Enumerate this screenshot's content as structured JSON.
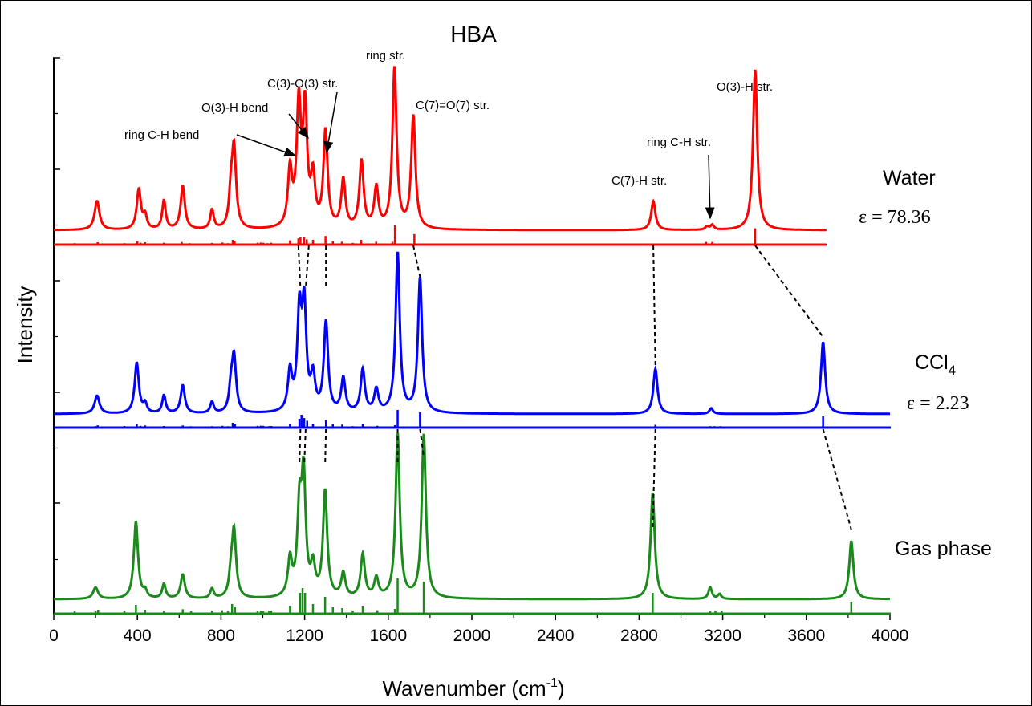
{
  "chart_data": {
    "type": "line",
    "title": "HBA",
    "xlabel_main": "Wavenumber (cm",
    "xlabel_sup": "-1",
    "xlabel_close": ")",
    "ylabel": "Intensity",
    "xlim": [
      0,
      4000
    ],
    "x_ticks": [
      "0",
      "400",
      "800",
      "1200",
      "1600",
      "2000",
      "2400",
      "2800",
      "3200",
      "3600",
      "4000"
    ],
    "colors": {
      "water": "#ff0000",
      "ccl4": "#0000ff",
      "gas": "#1a8a1a"
    },
    "series": [
      {
        "name": "Water",
        "epsilon": "ε = 78.36",
        "peaks": [
          [
            207,
            0.18,
            14
          ],
          [
            407,
            0.25,
            12
          ],
          [
            437,
            0.08,
            10
          ],
          [
            527,
            0.18,
            10
          ],
          [
            617,
            0.27,
            12
          ],
          [
            757,
            0.12,
            10
          ],
          [
            847,
            0.18,
            10
          ],
          [
            862,
            0.5,
            12
          ],
          [
            1130,
            0.35,
            12
          ],
          [
            1172,
            0.75,
            12
          ],
          [
            1202,
            0.72,
            12
          ],
          [
            1240,
            0.3,
            12
          ],
          [
            1300,
            0.6,
            12
          ],
          [
            1385,
            0.3,
            12
          ],
          [
            1472,
            0.42,
            12
          ],
          [
            1543,
            0.25,
            12
          ],
          [
            1630,
            1.0,
            12
          ],
          [
            1720,
            0.7,
            12
          ],
          [
            2868,
            0.18,
            12
          ],
          [
            3125,
            0.02,
            10
          ],
          [
            3150,
            0.03,
            10
          ],
          [
            3355,
            1.0,
            12
          ]
        ],
        "sticks": [
          [
            100,
            0.15
          ],
          [
            200,
            0.13
          ],
          [
            210,
            0.25
          ],
          [
            338,
            0.15
          ],
          [
            400,
            0.35
          ],
          [
            415,
            0.2
          ],
          [
            437,
            0.25
          ],
          [
            527,
            0.2
          ],
          [
            612,
            0.28
          ],
          [
            650,
            0.15
          ],
          [
            757,
            0.18
          ],
          [
            807,
            0.22
          ],
          [
            833,
            0.15
          ],
          [
            856,
            0.5
          ],
          [
            865,
            0.42
          ],
          [
            975,
            0.2
          ],
          [
            990,
            0.22
          ],
          [
            1002,
            0.2
          ],
          [
            1022,
            0.15
          ],
          [
            1040,
            0.2
          ],
          [
            1130,
            0.45
          ],
          [
            1170,
            0.65
          ],
          [
            1180,
            0.75
          ],
          [
            1198,
            0.75
          ],
          [
            1210,
            0.55
          ],
          [
            1240,
            0.5
          ],
          [
            1300,
            0.9
          ],
          [
            1335,
            0.35
          ],
          [
            1378,
            0.3
          ],
          [
            1430,
            0.18
          ],
          [
            1470,
            0.5
          ],
          [
            1542,
            0.3
          ],
          [
            1620,
            0.3
          ],
          [
            1632,
            2.0
          ],
          [
            1725,
            1.1
          ],
          [
            2868,
            0.12
          ],
          [
            3120,
            0.28
          ],
          [
            3150,
            0.28
          ],
          [
            3355,
            1.7
          ]
        ]
      },
      {
        "name": "CCl",
        "name_sub": "4",
        "epsilon": "ε = 2.23",
        "peaks": [
          [
            207,
            0.16,
            14
          ],
          [
            397,
            0.45,
            12
          ],
          [
            437,
            0.08,
            10
          ],
          [
            527,
            0.16,
            10
          ],
          [
            617,
            0.25,
            12
          ],
          [
            757,
            0.1,
            10
          ],
          [
            847,
            0.18,
            10
          ],
          [
            862,
            0.5,
            12
          ],
          [
            1130,
            0.35,
            12
          ],
          [
            1175,
            0.85,
            12
          ],
          [
            1198,
            0.9,
            12
          ],
          [
            1240,
            0.3,
            12
          ],
          [
            1302,
            0.8,
            12
          ],
          [
            1385,
            0.3,
            12
          ],
          [
            1478,
            0.38,
            12
          ],
          [
            1543,
            0.2,
            12
          ],
          [
            1645,
            1.42,
            12
          ],
          [
            1752,
            1.2,
            12
          ],
          [
            2878,
            0.4,
            12
          ],
          [
            3145,
            0.05,
            10
          ],
          [
            3680,
            0.64,
            12
          ]
        ],
        "sticks": [
          [
            100,
            0.15
          ],
          [
            200,
            0.18
          ],
          [
            210,
            0.28
          ],
          [
            338,
            0.2
          ],
          [
            397,
            0.45
          ],
          [
            415,
            0.22
          ],
          [
            437,
            0.27
          ],
          [
            527,
            0.2
          ],
          [
            617,
            0.27
          ],
          [
            655,
            0.17
          ],
          [
            757,
            0.18
          ],
          [
            807,
            0.22
          ],
          [
            833,
            0.17
          ],
          [
            856,
            0.6
          ],
          [
            867,
            0.45
          ],
          [
            975,
            0.22
          ],
          [
            990,
            0.23
          ],
          [
            1002,
            0.22
          ],
          [
            1030,
            0.18
          ],
          [
            1040,
            0.2
          ],
          [
            1130,
            0.47
          ],
          [
            1175,
            1.1
          ],
          [
            1185,
            1.6
          ],
          [
            1198,
            1.2
          ],
          [
            1212,
            0.85
          ],
          [
            1240,
            0.5
          ],
          [
            1302,
            0.95
          ],
          [
            1335,
            0.42
          ],
          [
            1380,
            0.38
          ],
          [
            1430,
            0.18
          ],
          [
            1478,
            0.5
          ],
          [
            1548,
            0.22
          ],
          [
            1632,
            0.3
          ],
          [
            1645,
            2.2
          ],
          [
            1752,
            1.9
          ],
          [
            2878,
            0.35
          ],
          [
            3140,
            0.18
          ],
          [
            3160,
            0.18
          ],
          [
            3190,
            0.18
          ],
          [
            3680,
            1.4
          ]
        ]
      },
      {
        "name": "Gas phase",
        "peaks": [
          [
            200,
            0.12,
            14
          ],
          [
            393,
            0.8,
            12
          ],
          [
            437,
            0.07,
            10
          ],
          [
            527,
            0.15,
            10
          ],
          [
            617,
            0.25,
            12
          ],
          [
            757,
            0.1,
            10
          ],
          [
            847,
            0.18,
            10
          ],
          [
            862,
            0.7,
            12
          ],
          [
            1130,
            0.38,
            12
          ],
          [
            1175,
            0.85,
            12
          ],
          [
            1195,
            1.2,
            12
          ],
          [
            1240,
            0.3,
            12
          ],
          [
            1298,
            1.1,
            12
          ],
          [
            1385,
            0.25,
            12
          ],
          [
            1478,
            0.45,
            12
          ],
          [
            1543,
            0.2,
            12
          ],
          [
            1645,
            1.7,
            12
          ],
          [
            1770,
            1.7,
            12
          ],
          [
            2865,
            1.1,
            12
          ],
          [
            3140,
            0.12,
            10
          ],
          [
            3185,
            0.05,
            10
          ],
          [
            3815,
            0.6,
            12
          ]
        ],
        "sticks": [
          [
            100,
            0.15
          ],
          [
            200,
            0.15
          ],
          [
            212,
            0.25
          ],
          [
            338,
            0.2
          ],
          [
            393,
            0.55
          ],
          [
            437,
            0.25
          ],
          [
            527,
            0.18
          ],
          [
            617,
            0.28
          ],
          [
            657,
            0.18
          ],
          [
            757,
            0.2
          ],
          [
            805,
            0.22
          ],
          [
            833,
            0.18
          ],
          [
            853,
            0.6
          ],
          [
            867,
            0.45
          ],
          [
            975,
            0.18
          ],
          [
            990,
            0.2
          ],
          [
            1002,
            0.18
          ],
          [
            1030,
            0.18
          ],
          [
            1040,
            0.2
          ],
          [
            1130,
            0.5
          ],
          [
            1178,
            1.3
          ],
          [
            1190,
            1.6
          ],
          [
            1202,
            1.3
          ],
          [
            1240,
            0.6
          ],
          [
            1298,
            1.05
          ],
          [
            1335,
            0.4
          ],
          [
            1380,
            0.35
          ],
          [
            1430,
            0.2
          ],
          [
            1478,
            0.5
          ],
          [
            1548,
            0.22
          ],
          [
            1632,
            0.3
          ],
          [
            1645,
            2.2
          ],
          [
            1770,
            2.0
          ],
          [
            2865,
            1.3
          ],
          [
            3140,
            0.15
          ],
          [
            3165,
            0.2
          ],
          [
            3195,
            0.2
          ],
          [
            3815,
            0.75
          ]
        ]
      }
    ],
    "annotations": [
      "ring C-H bend",
      "O(3)-H bend",
      "C(3)-O(3) str.",
      "ring str.",
      "C(7)=O(7) str.",
      "C(7)-H str.",
      "ring C-H str.",
      "O(3)-H str."
    ],
    "correlations": [
      {
        "from": "water",
        "to": "ccl4",
        "x": [
          [
            1170,
            1180
          ],
          [
            1220,
            1205
          ],
          [
            1302,
            1302
          ],
          [
            1720,
            1752
          ],
          [
            2868,
            2878
          ],
          [
            3355,
            3680
          ]
        ]
      },
      {
        "from": "ccl4",
        "to": "gas",
        "x": [
          [
            1180,
            1175
          ],
          [
            1205,
            1198
          ],
          [
            1302,
            1298
          ],
          [
            1645,
            1645
          ],
          [
            1752,
            1770
          ],
          [
            2878,
            2865
          ],
          [
            3680,
            3815
          ]
        ]
      }
    ]
  }
}
